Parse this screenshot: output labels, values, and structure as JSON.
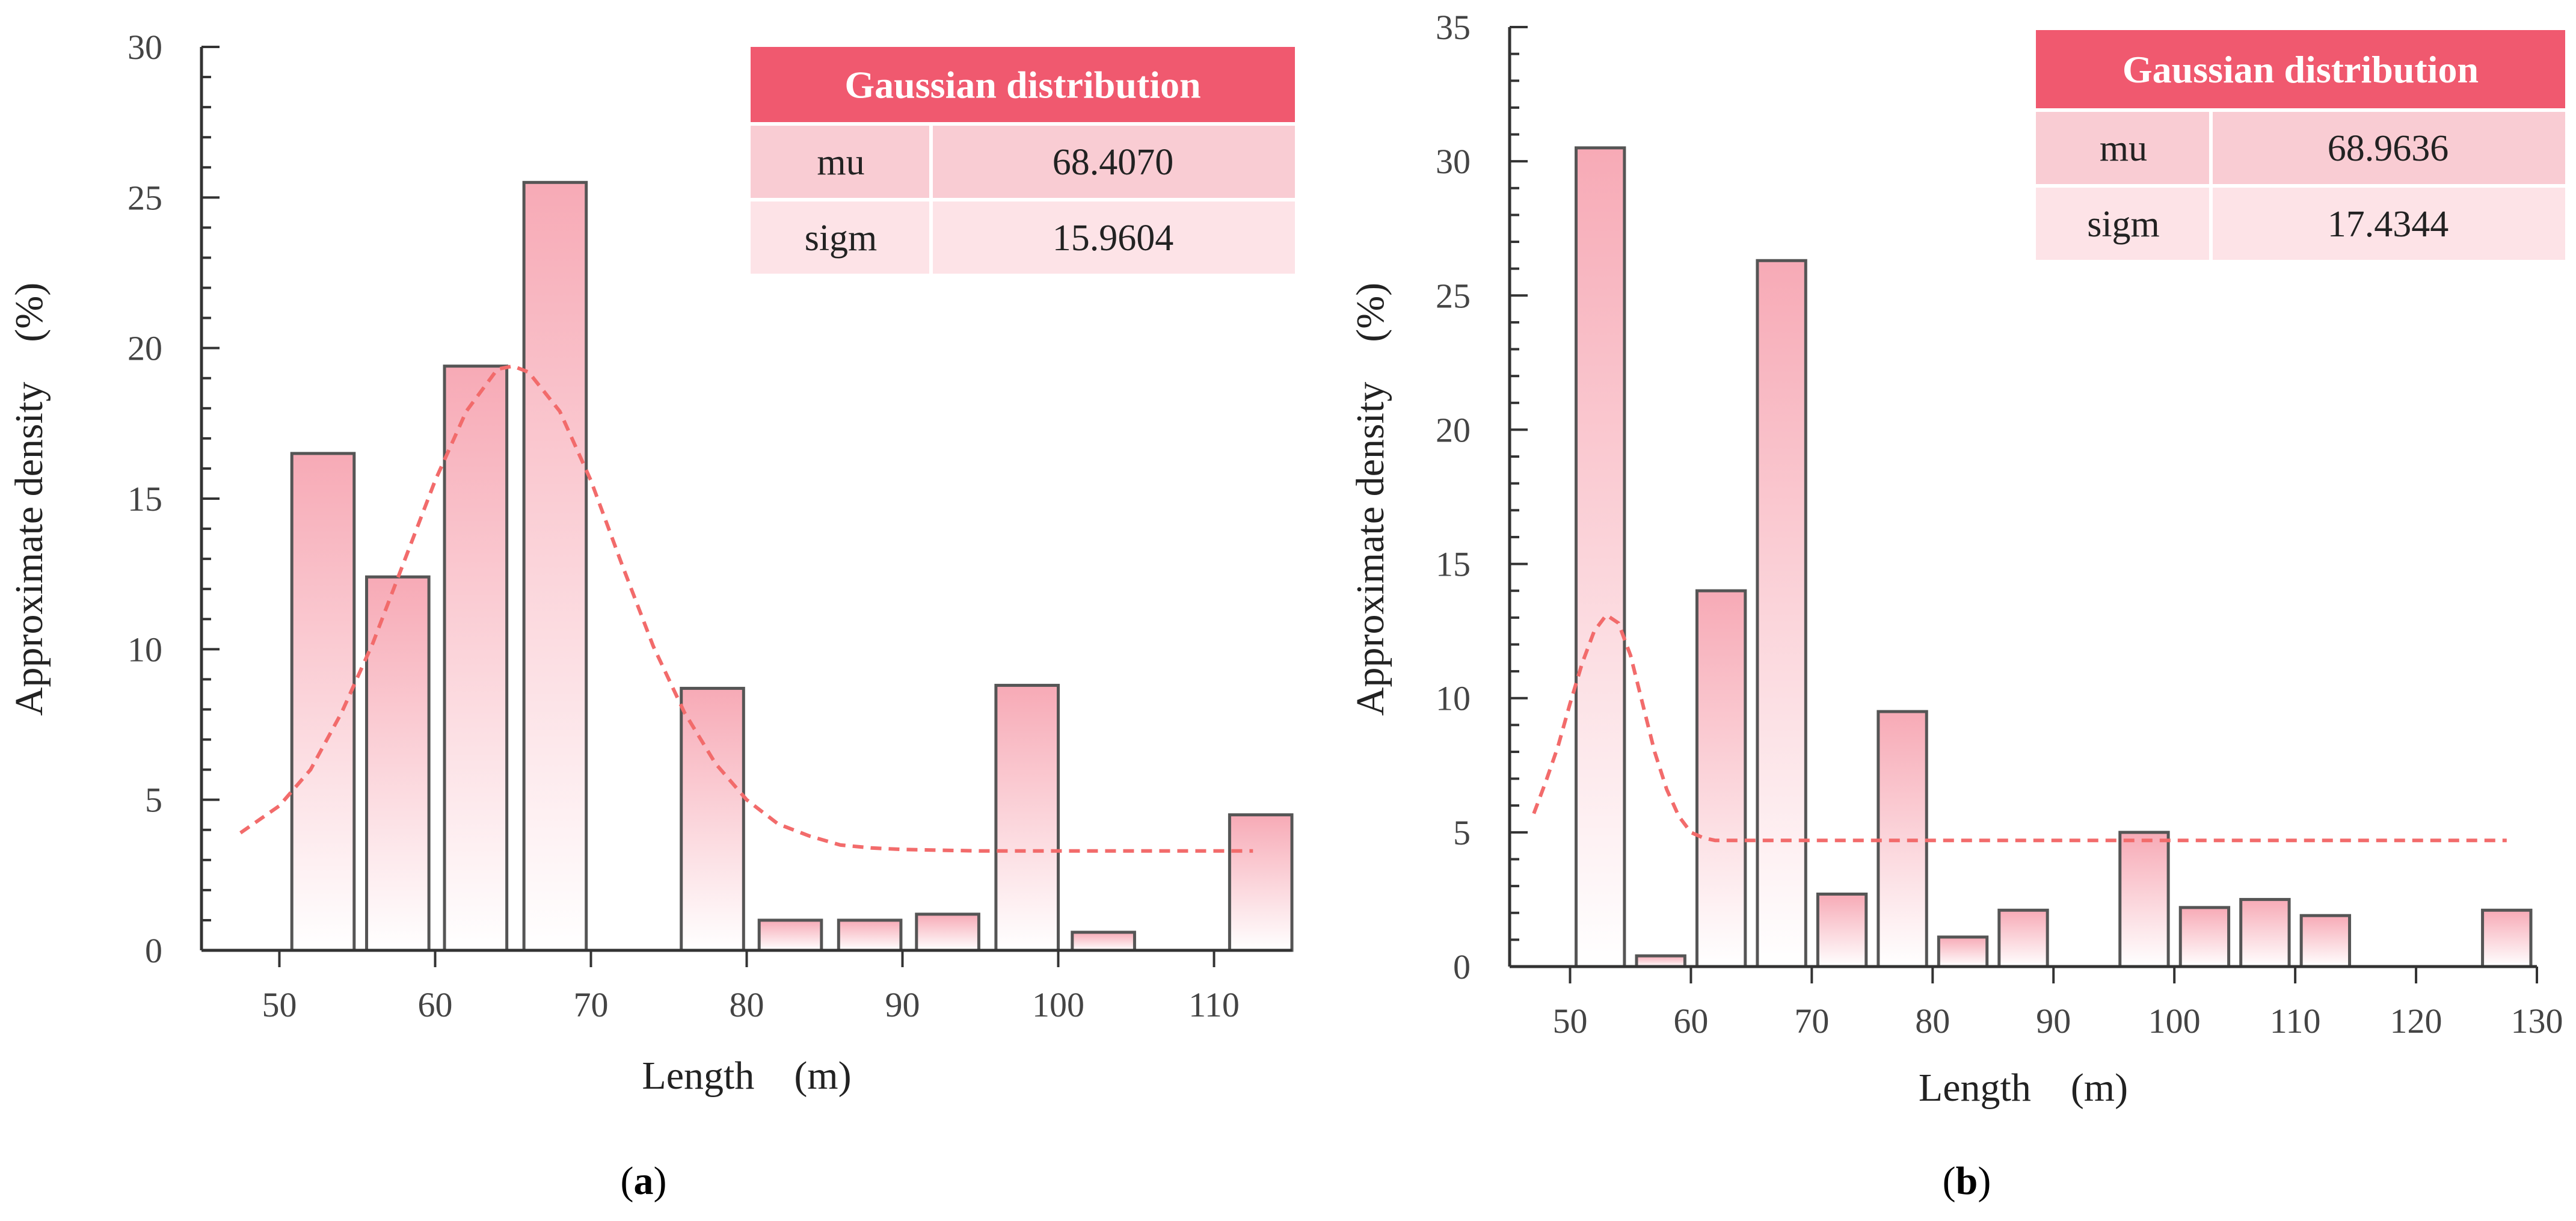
{
  "colors": {
    "bar_top": "#f7aab6",
    "bar_bottom": "#ffffff",
    "bar_stroke": "#555555",
    "curve": "#f26b6b",
    "table_header": "#f0596f",
    "table_row1": "#f9ccd3",
    "table_row2": "#fde3e7",
    "axis": "#333333"
  },
  "chart_data": [
    {
      "type": "bar",
      "panel_label": "a",
      "xlabel": "Length (m)",
      "ylabel": "Approximate density (%)",
      "xlim": [
        45,
        115
      ],
      "ylim": [
        0,
        30
      ],
      "x_ticks": [
        50,
        60,
        70,
        80,
        90,
        100,
        110
      ],
      "y_ticks": [
        0,
        5,
        10,
        15,
        20,
        25,
        30
      ],
      "y_minor_step": 1,
      "bin_width": 4,
      "bars": [
        {
          "center": 52.8,
          "value": 16.5
        },
        {
          "center": 57.6,
          "value": 12.4
        },
        {
          "center": 62.6,
          "value": 19.4
        },
        {
          "center": 67.7,
          "value": 25.5
        },
        {
          "center": 77.8,
          "value": 8.7
        },
        {
          "center": 82.8,
          "value": 1.0
        },
        {
          "center": 87.9,
          "value": 1.0
        },
        {
          "center": 92.9,
          "value": 1.2
        },
        {
          "center": 98.0,
          "value": 8.8
        },
        {
          "center": 102.9,
          "value": 0.6
        },
        {
          "center": 113.0,
          "value": 4.5
        }
      ],
      "fit_curve": {
        "x": [
          47.5,
          50,
          52,
          54,
          56,
          58,
          60,
          62,
          64,
          65,
          66,
          68,
          70,
          72,
          74,
          76,
          78,
          80,
          82,
          84,
          86,
          88,
          90,
          95,
          100,
          105,
          112.5
        ],
        "y": [
          3.9,
          4.8,
          6.0,
          7.9,
          10.2,
          12.9,
          15.6,
          17.9,
          19.3,
          19.4,
          19.2,
          17.9,
          15.6,
          12.8,
          10.1,
          7.9,
          6.2,
          5.0,
          4.2,
          3.8,
          3.5,
          3.4,
          3.35,
          3.3,
          3.3,
          3.3,
          3.3
        ]
      },
      "table": {
        "header": "Gaussian distribution",
        "rows": [
          {
            "label": "mu",
            "value": "68.4070"
          },
          {
            "label": "sigm",
            "value": "15.9604"
          }
        ]
      }
    },
    {
      "type": "bar",
      "panel_label": "b",
      "xlabel": "Length (m)",
      "ylabel": "Approximate density (%)",
      "xlim": [
        45,
        130
      ],
      "ylim": [
        0,
        35
      ],
      "x_ticks": [
        50,
        60,
        70,
        80,
        90,
        100,
        110,
        120,
        130
      ],
      "y_ticks": [
        0,
        5,
        10,
        15,
        20,
        25,
        30,
        35
      ],
      "y_minor_step": 1,
      "bin_width": 4,
      "bars": [
        {
          "center": 52.5,
          "value": 30.5
        },
        {
          "center": 57.5,
          "value": 0.4
        },
        {
          "center": 62.5,
          "value": 14.0
        },
        {
          "center": 67.5,
          "value": 26.3
        },
        {
          "center": 72.5,
          "value": 2.7
        },
        {
          "center": 77.5,
          "value": 9.5
        },
        {
          "center": 82.5,
          "value": 1.1
        },
        {
          "center": 87.5,
          "value": 2.1
        },
        {
          "center": 97.5,
          "value": 5.0
        },
        {
          "center": 102.5,
          "value": 2.2
        },
        {
          "center": 107.5,
          "value": 2.5
        },
        {
          "center": 112.5,
          "value": 1.9
        },
        {
          "center": 127.5,
          "value": 2.1
        }
      ],
      "fit_curve": {
        "x": [
          47,
          48,
          49,
          50,
          51,
          52,
          53,
          54,
          55,
          56,
          57,
          58,
          59,
          60,
          61,
          62,
          63,
          65,
          70,
          80,
          100,
          127.5
        ],
        "y": [
          5.7,
          6.9,
          8.2,
          9.8,
          11.3,
          12.5,
          13.1,
          12.8,
          11.6,
          9.8,
          8.0,
          6.6,
          5.6,
          5.0,
          4.8,
          4.7,
          4.7,
          4.7,
          4.7,
          4.7,
          4.7,
          4.7
        ]
      },
      "table": {
        "header": "Gaussian distribution",
        "rows": [
          {
            "label": "mu",
            "value": "68.9636"
          },
          {
            "label": "sigm",
            "value": "17.4344"
          }
        ]
      }
    }
  ]
}
